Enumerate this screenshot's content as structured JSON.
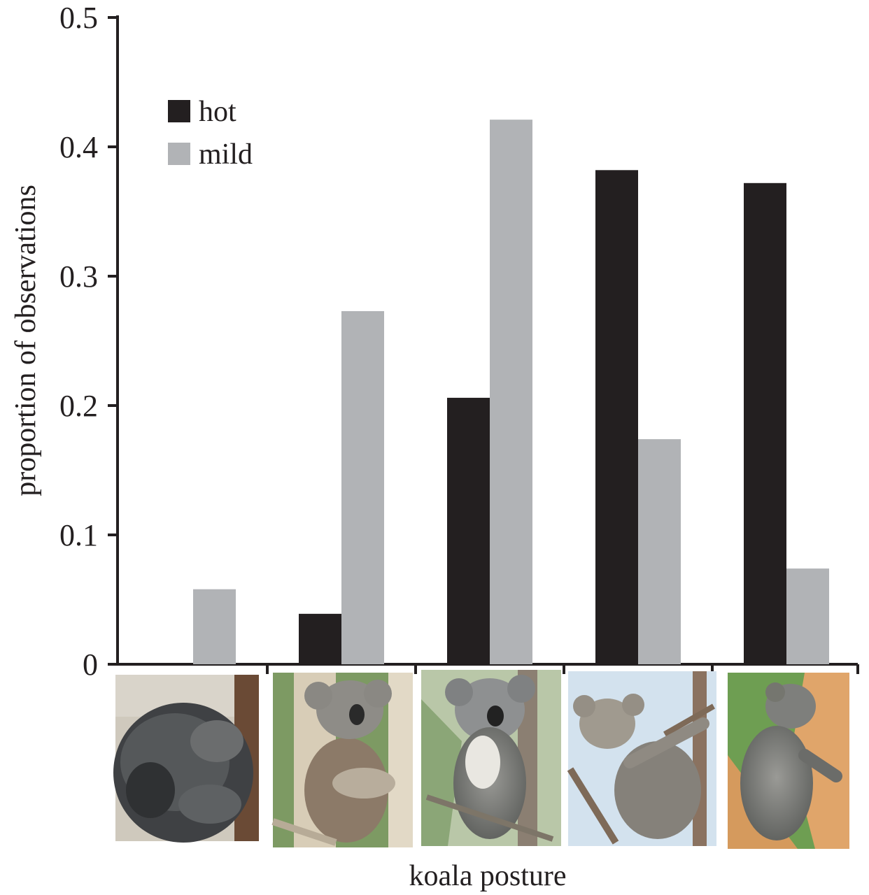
{
  "chart_data": {
    "type": "bar",
    "categories": [
      "posture 1",
      "posture 2",
      "posture 3",
      "posture 4",
      "posture 5"
    ],
    "category_labels_visible": false,
    "category_display": "koala photographs below x-axis",
    "series": [
      {
        "name": "hot",
        "values": [
          0.0,
          0.039,
          0.206,
          0.382,
          0.372
        ],
        "color": "#231f20"
      },
      {
        "name": "mild",
        "values": [
          0.058,
          0.273,
          0.421,
          0.174,
          0.074
        ],
        "color": "#b1b3b6"
      }
    ],
    "xlabel": "koala posture",
    "ylabel": "proportion of observations",
    "ylim": [
      0,
      0.5
    ],
    "yticks": [
      "0",
      "0.1",
      "0.2",
      "0.3",
      "0.4",
      "0.5"
    ],
    "legend_position": "top-left",
    "grid": false
  },
  "photos": [
    {
      "icon": "koala-curled-ball-photo"
    },
    {
      "icon": "koala-sitting-upright-photo"
    },
    {
      "icon": "koala-hanging-branch-photo"
    },
    {
      "icon": "koala-stretched-limbs-photo"
    },
    {
      "icon": "koala-hugging-trunk-photo"
    }
  ]
}
